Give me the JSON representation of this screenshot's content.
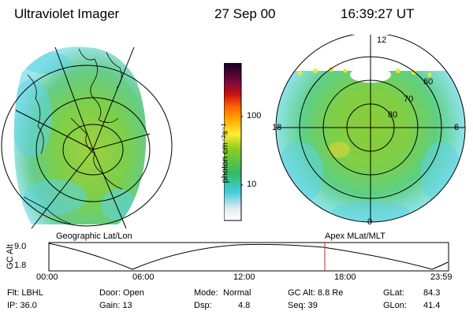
{
  "header": {
    "instrument": "Ultraviolet Imager",
    "date": "27 Sep 00",
    "time": "16:39:27 UT"
  },
  "colorbar": {
    "unit_label": "photon cm⁻²s⁻¹",
    "ticks": [
      "100",
      "10"
    ]
  },
  "left_panel": {
    "label": "Geographic Lat/Lon"
  },
  "right_panel": {
    "label": "Apex MLat/MLT",
    "mlt_labels": {
      "top": "12",
      "left": "18",
      "right": "6",
      "bottom": "0"
    },
    "lat_labels": [
      "60",
      "70",
      "80"
    ]
  },
  "timeline": {
    "ylabel": "GC Alt",
    "yticks": [
      "9.0",
      "1.8"
    ],
    "xticks": [
      "00:00",
      "06:00",
      "12:00",
      "18:00",
      "23:59"
    ],
    "current_marker_time": "16:39"
  },
  "status": {
    "filter": "Flt: LBHL",
    "ip": "IP: 36.0",
    "door": "Door: Open",
    "gain": "Gain: 13",
    "mode_label": "Mode:",
    "mode_value": "Normal",
    "dsp_label": "Dsp:",
    "dsp_value": "4.8",
    "gc_alt": "GC Alt: 8.8 Re",
    "seq": "Seq: 39",
    "glat_label": "GLat:",
    "glat_value": "84.3",
    "glon_label": "GLon:",
    "glon_value": "41.4"
  },
  "colors": {
    "background": "#ffffff",
    "marker": "#cc2222"
  }
}
